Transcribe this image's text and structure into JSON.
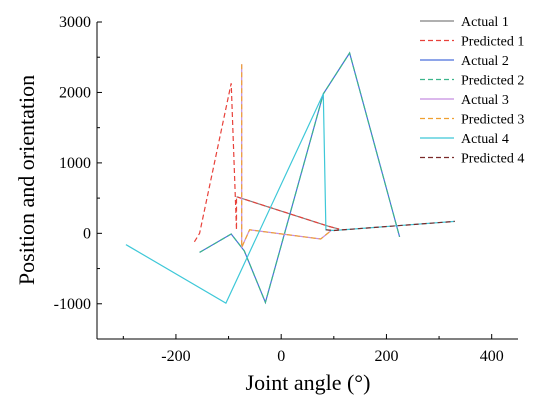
{
  "chart_data": {
    "type": "line",
    "title": "",
    "xlabel": "Joint angle (°)",
    "ylabel": "Position and orientation",
    "xlim": [
      -350,
      450
    ],
    "ylim": [
      -1500,
      3000
    ],
    "xticks": [
      {
        "value": -200,
        "label": "-200"
      },
      {
        "value": 0,
        "label": "0"
      },
      {
        "value": 200,
        "label": "200"
      },
      {
        "value": 400,
        "label": "400"
      }
    ],
    "yticks": [
      {
        "value": -1000,
        "label": "-1000"
      },
      {
        "value": 0,
        "label": "0"
      },
      {
        "value": 1000,
        "label": "1000"
      },
      {
        "value": 2000,
        "label": "2000"
      },
      {
        "value": 3000,
        "label": "3000"
      }
    ],
    "grid": false,
    "legend_position": "top-right",
    "series": [
      {
        "name": "Actual 1",
        "color": "#808080",
        "dash": "solid",
        "x": [
          -85,
          90,
          110
        ],
        "y": [
          520,
          100,
          60
        ]
      },
      {
        "name": "Predicted 1",
        "color": "#e8413a",
        "dash": "dashed",
        "x": [
          -165,
          -155,
          -95,
          -85,
          -85,
          90,
          110
        ],
        "y": [
          -120,
          0,
          2130,
          50,
          520,
          100,
          60
        ]
      },
      {
        "name": "Actual 2",
        "color": "#4a6fdc",
        "dash": "solid",
        "x": [
          -155,
          -95,
          -70,
          -30,
          80,
          130,
          225
        ],
        "y": [
          -270,
          -10,
          -250,
          -980,
          1980,
          2560,
          -50
        ]
      },
      {
        "name": "Predicted 2",
        "color": "#3cb58c",
        "dash": "dashed",
        "x": [
          -155,
          -95,
          -70,
          -30,
          80,
          130,
          225
        ],
        "y": [
          -270,
          -10,
          -250,
          -980,
          1980,
          2560,
          -50
        ]
      },
      {
        "name": "Actual 3",
        "color": "#c58ee0",
        "dash": "solid",
        "x": [
          -75,
          -75,
          -60,
          75,
          95
        ],
        "y": [
          2400,
          -200,
          50,
          -80,
          40
        ]
      },
      {
        "name": "Predicted 3",
        "color": "#f0a030",
        "dash": "dashed",
        "x": [
          -75,
          -75,
          -60,
          75,
          95
        ],
        "y": [
          2400,
          -200,
          50,
          -80,
          40
        ]
      },
      {
        "name": "Actual 4",
        "color": "#3ec8d8",
        "dash": "solid",
        "x": [
          -295,
          -105,
          80,
          85,
          100,
          330
        ],
        "y": [
          -160,
          -990,
          1980,
          50,
          40,
          170
        ]
      },
      {
        "name": "Predicted 4",
        "color": "#7a2a2a",
        "dash": "dashed",
        "x": [
          85,
          100,
          330
        ],
        "y": [
          50,
          40,
          170
        ]
      }
    ]
  }
}
